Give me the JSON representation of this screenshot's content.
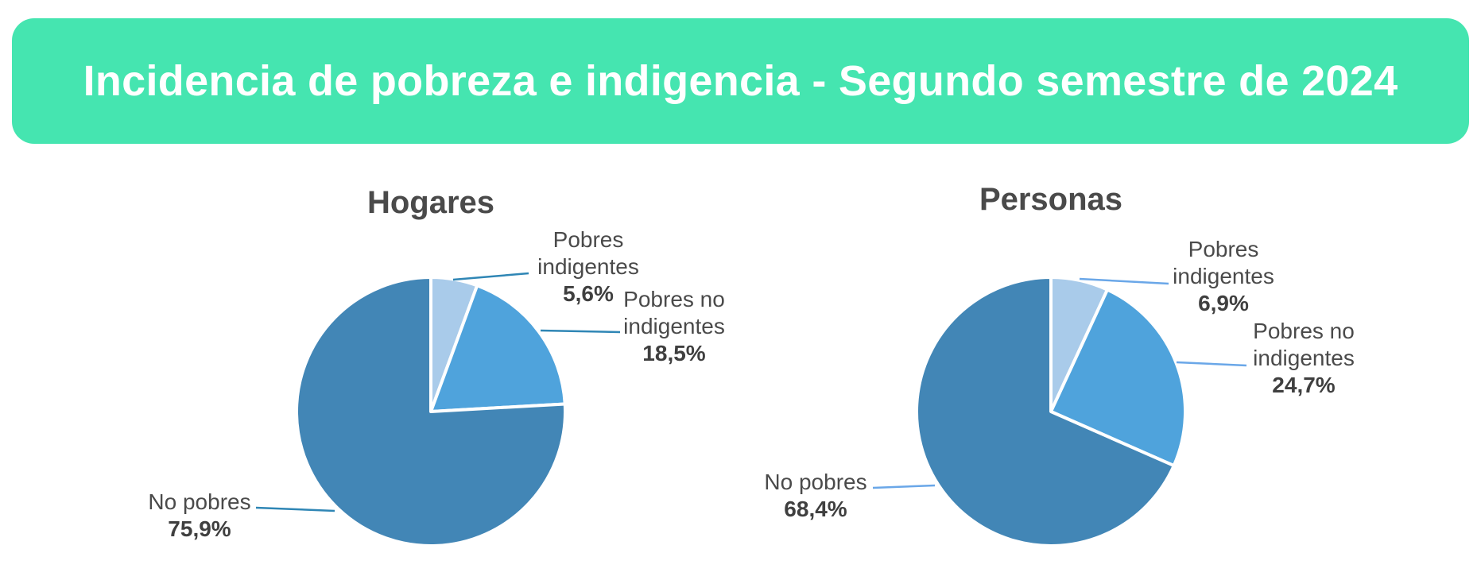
{
  "header": {
    "title": "Incidencia de pobreza e indigencia -  Segundo semestre de 2024",
    "background_color": "#45e5b0"
  },
  "chart_data": [
    {
      "type": "pie",
      "title": "Hogares",
      "start_angle_deg": 0,
      "direction": "clockwise",
      "slices": [
        {
          "name_lines": [
            "Pobres",
            "indigentes"
          ],
          "value": 5.6,
          "value_label": "5,6%",
          "color": "#a9cbea",
          "leader_color": "#2f86b5"
        },
        {
          "name_lines": [
            "Pobres no",
            "indigentes"
          ],
          "value": 18.5,
          "value_label": "18,5%",
          "color": "#4fa3dc",
          "leader_color": "#2f86b5"
        },
        {
          "name_lines": [
            "No pobres"
          ],
          "value": 75.9,
          "value_label": "75,9%",
          "color": "#4286b6",
          "leader_color": "#2f86b5"
        }
      ]
    },
    {
      "type": "pie",
      "title": "Personas",
      "start_angle_deg": 0,
      "direction": "clockwise",
      "slices": [
        {
          "name_lines": [
            "Pobres",
            "indigentes"
          ],
          "value": 6.9,
          "value_label": "6,9%",
          "color": "#a9cbea",
          "leader_color": "#6aa7e8"
        },
        {
          "name_lines": [
            "Pobres no",
            "indigentes"
          ],
          "value": 24.7,
          "value_label": "24,7%",
          "color": "#4fa3dc",
          "leader_color": "#6aa7e8"
        },
        {
          "name_lines": [
            "No pobres"
          ],
          "value": 68.4,
          "value_label": "68,4%",
          "color": "#4286b6",
          "leader_color": "#6aa7e8"
        }
      ]
    }
  ]
}
